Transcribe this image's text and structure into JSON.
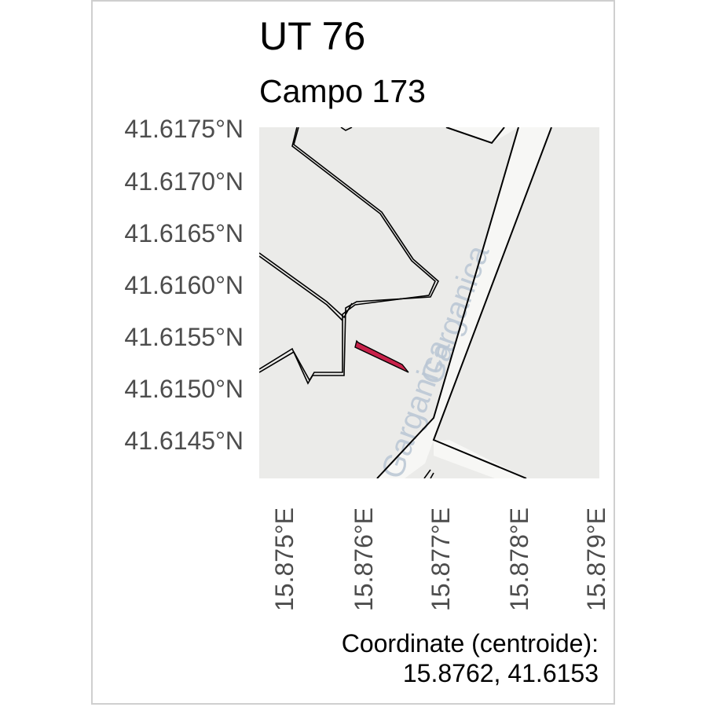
{
  "title": "UT 76",
  "subtitle": "Campo 173",
  "road_label": "Garganica",
  "axes": {
    "y_ticks": [
      "41.6175°N",
      "41.6170°N",
      "41.6165°N",
      "41.6160°N",
      "41.6155°N",
      "41.6150°N",
      "41.6145°N"
    ],
    "x_ticks": [
      "15.875°E",
      "15.876°E",
      "15.877°E",
      "15.878°E",
      "15.879°E"
    ]
  },
  "caption": {
    "line1": "Coordinate (centroide):",
    "line2": "15.8762, 41.6153"
  },
  "colors": {
    "map_background": "#ebebe9",
    "road_fill": "#f7f7f5",
    "parcel_fill": "#c8224a",
    "boundary": "#000000",
    "road_label": "#b9c6d4"
  }
}
